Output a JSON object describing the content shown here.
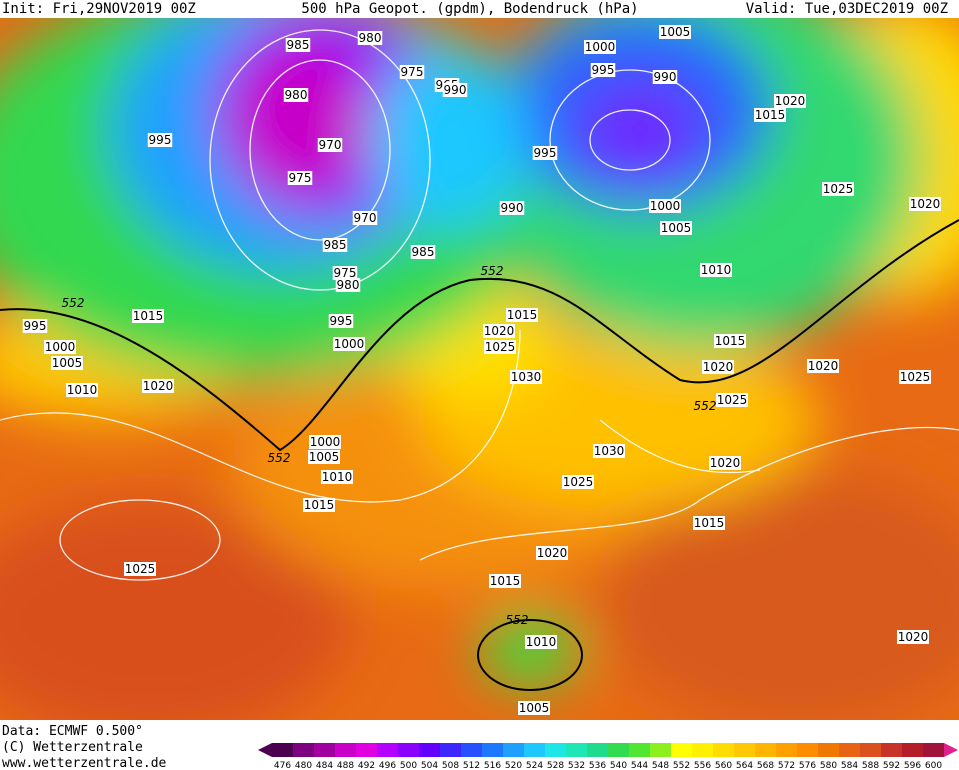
{
  "header": {
    "init": "Init: Fri,29NOV2019 00Z",
    "title": "500 hPa Geopot. (gpdm), Bodendruck (hPa)",
    "valid": "Valid: Tue,03DEC2019 00Z"
  },
  "map": {
    "labels": [
      "985",
      "980",
      "975",
      "965",
      "990",
      "980",
      "995",
      "970",
      "975",
      "970",
      "985",
      "975",
      "980",
      "985",
      "990",
      "995",
      "1000",
      "1005",
      "995",
      "990",
      "1015",
      "1020",
      "1025",
      "1020",
      "1000",
      "1005",
      "1010",
      "552",
      "1015",
      "1020",
      "1025",
      "1030",
      "1015",
      "1020",
      "1025",
      "552",
      "1020",
      "1025",
      "1020",
      "1030",
      "1025",
      "1015",
      "1020",
      "1015",
      "552",
      "1010",
      "1005",
      "1020",
      "1025",
      "1015",
      "1010",
      "1005",
      "1000",
      "552",
      "1020",
      "1010",
      "1005",
      "1000",
      "995",
      "552",
      "1015",
      "995",
      "1000"
    ]
  },
  "footer": {
    "data": "Data: ECMWF   0.500°",
    "copyright": "(C) Wetterzentrale",
    "url": "www.wetterzentrale.de"
  },
  "legend": {
    "values": [
      476,
      480,
      484,
      488,
      492,
      496,
      500,
      504,
      508,
      512,
      516,
      520,
      524,
      528,
      532,
      536,
      540,
      544,
      548,
      552,
      556,
      560,
      564,
      568,
      572,
      576,
      580,
      584,
      588,
      592,
      596,
      600
    ],
    "colors": [
      "#4b0050",
      "#7d0080",
      "#a000a0",
      "#c800c8",
      "#e000e0",
      "#b400ff",
      "#8c00ff",
      "#6400ff",
      "#3c28ff",
      "#2850ff",
      "#1e78ff",
      "#1ea0ff",
      "#1ec8ff",
      "#1ee6e6",
      "#1ee6b4",
      "#1edc8c",
      "#32dc50",
      "#50e632",
      "#8cf01e",
      "#ffff00",
      "#fff000",
      "#ffdc00",
      "#ffc800",
      "#ffb400",
      "#ffa000",
      "#ff8c00",
      "#f07800",
      "#e66414",
      "#dc501e",
      "#c83228",
      "#b41e28",
      "#a0143c"
    ]
  }
}
